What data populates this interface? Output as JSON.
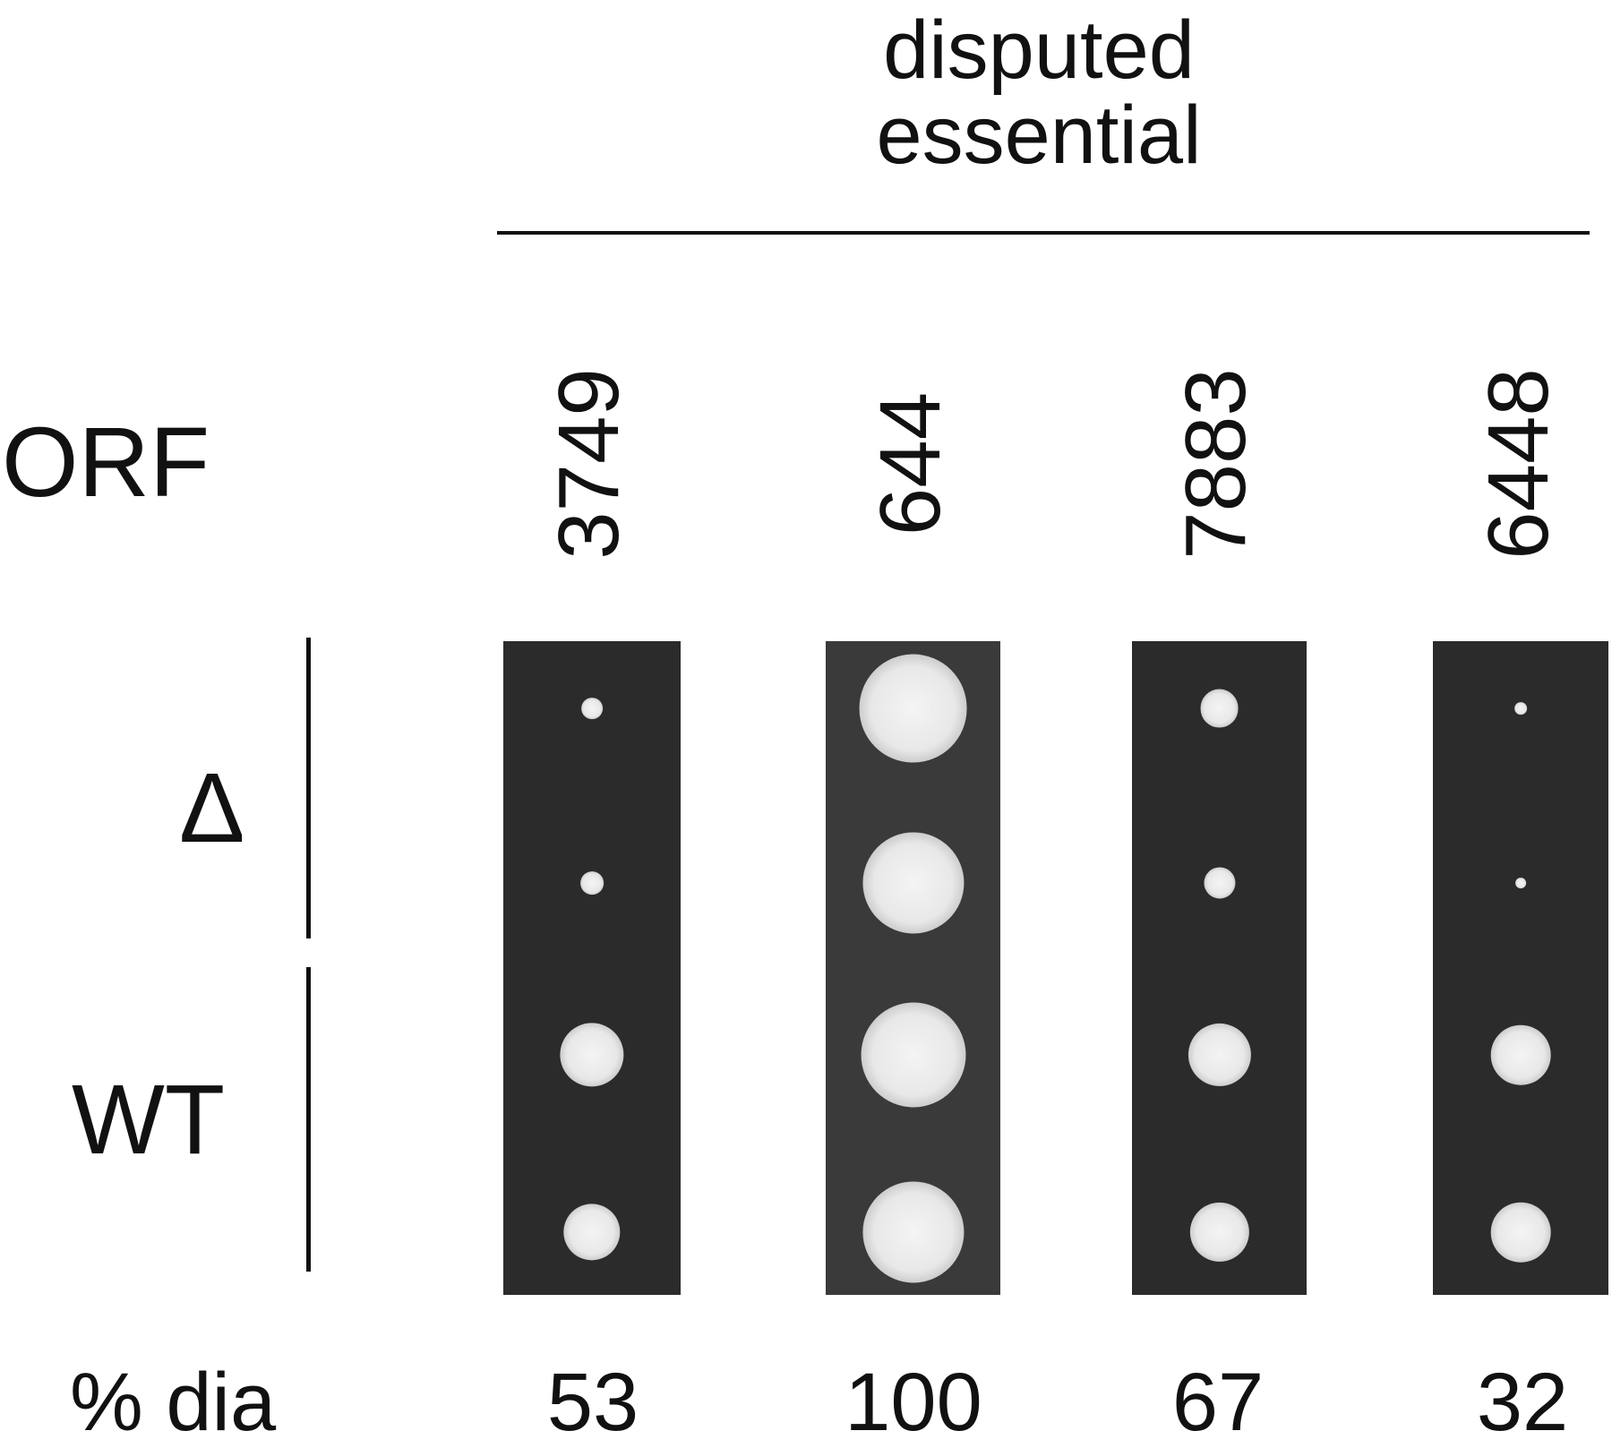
{
  "header": {
    "line1": "disputed",
    "line2": "essential"
  },
  "row_labels": {
    "orf": "ORF",
    "delta": "Δ",
    "wt": "WT",
    "pct": "% dia"
  },
  "columns": [
    {
      "orf": "3749",
      "pct_dia": "53",
      "strip_color": "#2b2b2b",
      "colony_diameters_relative": [
        0.12,
        0.13,
        0.36,
        0.32
      ]
    },
    {
      "orf": "644",
      "pct_dia": "100",
      "strip_color": "#3a3a3a",
      "colony_diameters_relative": [
        0.62,
        0.58,
        0.6,
        0.58
      ]
    },
    {
      "orf": "7883",
      "pct_dia": "67",
      "strip_color": "#2b2b2b",
      "colony_diameters_relative": [
        0.22,
        0.18,
        0.36,
        0.34
      ]
    },
    {
      "orf": "6448",
      "pct_dia": "32",
      "strip_color": "#2b2b2b",
      "colony_diameters_relative": [
        0.07,
        0.06,
        0.34,
        0.34
      ]
    }
  ]
}
